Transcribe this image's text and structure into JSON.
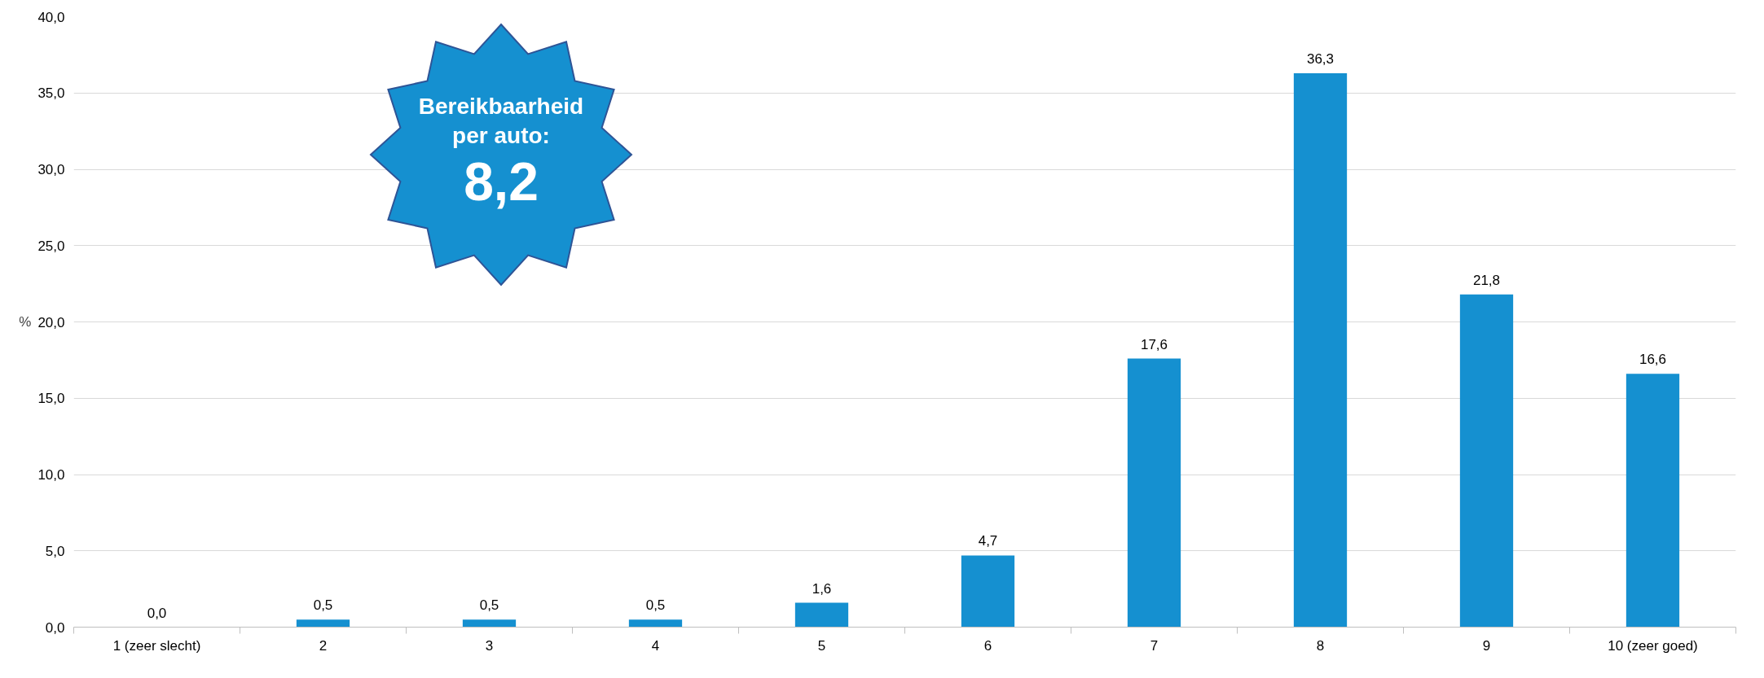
{
  "chart_data": {
    "type": "bar",
    "categories": [
      "1 (zeer slecht)",
      "2",
      "3",
      "4",
      "5",
      "6",
      "7",
      "8",
      "9",
      "10 (zeer goed)"
    ],
    "values": [
      0.0,
      0.5,
      0.5,
      0.5,
      1.6,
      4.7,
      17.6,
      36.3,
      21.8,
      16.6
    ],
    "value_labels": [
      "0,0",
      "0,5",
      "0,5",
      "0,5",
      "1,6",
      "4,7",
      "17,6",
      "36,3",
      "21,8",
      "16,6"
    ],
    "color": "#1590d0",
    "ylabel": "%",
    "ylim": [
      0,
      40
    ],
    "yticks": [
      {
        "value": 0,
        "label": "0,0"
      },
      {
        "value": 5,
        "label": "5,0"
      },
      {
        "value": 10,
        "label": "10,0"
      },
      {
        "value": 15,
        "label": "15,0"
      },
      {
        "value": 20,
        "label": "20,0"
      },
      {
        "value": 25,
        "label": "25,0"
      },
      {
        "value": 30,
        "label": "30,0"
      },
      {
        "value": 35,
        "label": "35,0"
      },
      {
        "value": 40,
        "label": "40,0"
      }
    ],
    "grid": "y",
    "annotations": [
      "Bereikbaarheid per auto:",
      "8,2"
    ]
  }
}
